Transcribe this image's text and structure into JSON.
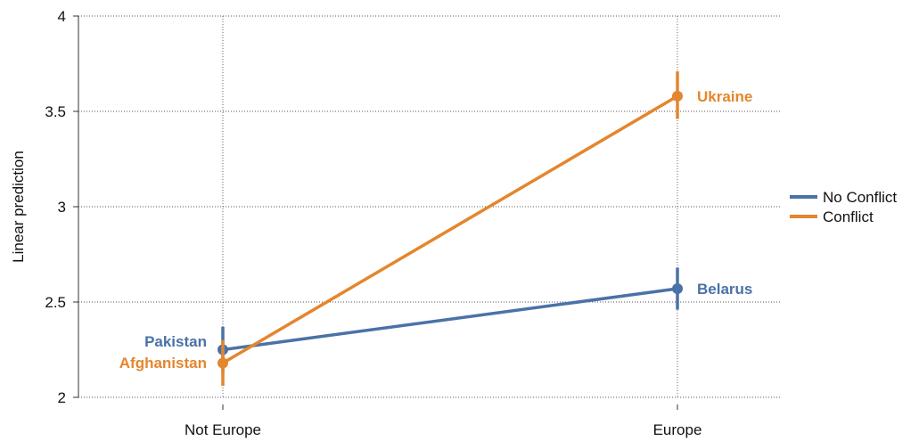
{
  "chart_data": {
    "type": "line",
    "title": "",
    "xlabel": "",
    "ylabel": "Linear prediction",
    "categories": [
      "Not Europe",
      "Europe"
    ],
    "ylim": [
      2,
      4
    ],
    "yticks": [
      "2",
      "2.5",
      "3",
      "3.5",
      "4"
    ],
    "grid": true,
    "legend_position": "right",
    "series": [
      {
        "name": "No Conflict",
        "color": "#4a72a6",
        "values": [
          2.25,
          2.57
        ],
        "ci_low": [
          2.13,
          2.46
        ],
        "ci_high": [
          2.37,
          2.68
        ],
        "point_labels": [
          "Pakistan",
          "Belarus"
        ]
      },
      {
        "name": "Conflict",
        "color": "#e4862d",
        "values": [
          2.18,
          3.58
        ],
        "ci_low": [
          2.06,
          3.46
        ],
        "ci_high": [
          2.3,
          3.71
        ],
        "point_labels": [
          "Afghanistan",
          "Ukraine"
        ]
      }
    ]
  }
}
